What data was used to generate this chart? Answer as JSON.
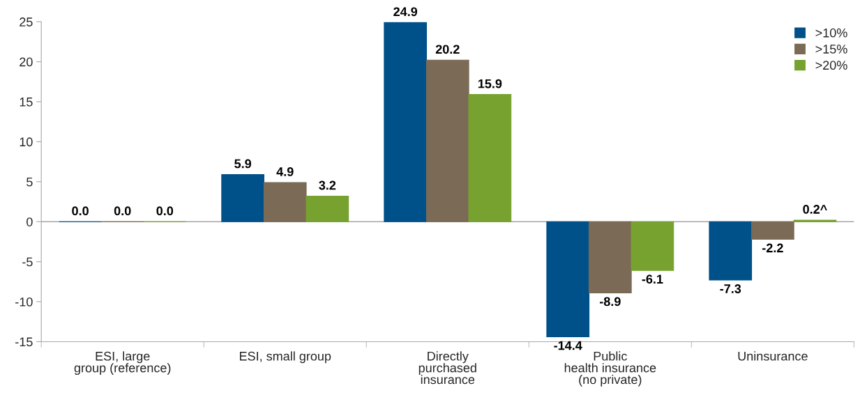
{
  "chart_data": {
    "type": "bar",
    "categories": [
      "ESI, large\ngroup (reference)",
      "ESI, small group",
      "Directly\npurchased\ninsurance",
      "Public\nhealth insurance\n(no private)",
      "Uninsurance"
    ],
    "series": [
      {
        "name": ">10%",
        "color": "#00508a",
        "values": [
          0.0,
          5.9,
          24.9,
          -14.4,
          -7.3
        ],
        "value_labels": [
          "0.0",
          "5.9",
          "24.9",
          "-14.4",
          "-7.3"
        ]
      },
      {
        "name": ">15%",
        "color": "#7b6a55",
        "values": [
          0.0,
          4.9,
          20.2,
          -8.9,
          -2.2
        ],
        "value_labels": [
          "0.0",
          "4.9",
          "20.2",
          "-8.9",
          "-2.2"
        ]
      },
      {
        "name": ">20%",
        "color": "#77a22f",
        "values": [
          0.0,
          3.2,
          15.9,
          -6.1,
          0.2
        ],
        "value_labels": [
          "0.0",
          "3.2",
          "15.9",
          "-6.1",
          "0.2^"
        ]
      }
    ],
    "ylim": [
      -15,
      25
    ],
    "yticks": [
      -15,
      -10,
      -5,
      0,
      5,
      10,
      15,
      20,
      25
    ],
    "ref_lines": [
      {
        "axis": "y",
        "value": 0,
        "color": "#a6a6a6"
      }
    ],
    "grid": false,
    "legend": "top right"
  }
}
